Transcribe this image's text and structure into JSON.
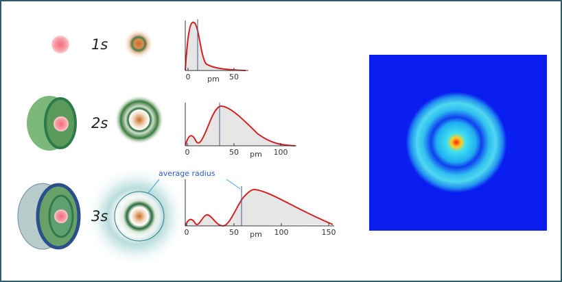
{
  "rows": [
    {
      "label": "1s",
      "plot": {
        "unit": "pm",
        "ticks": [
          0,
          50
        ]
      }
    },
    {
      "label": "2s",
      "plot": {
        "unit": "pm",
        "ticks": [
          0,
          50,
          100
        ]
      }
    },
    {
      "label": "3s",
      "plot": {
        "unit": "pm",
        "ticks": [
          0,
          50,
          100,
          150
        ]
      }
    }
  ],
  "annotation": "average radius"
}
